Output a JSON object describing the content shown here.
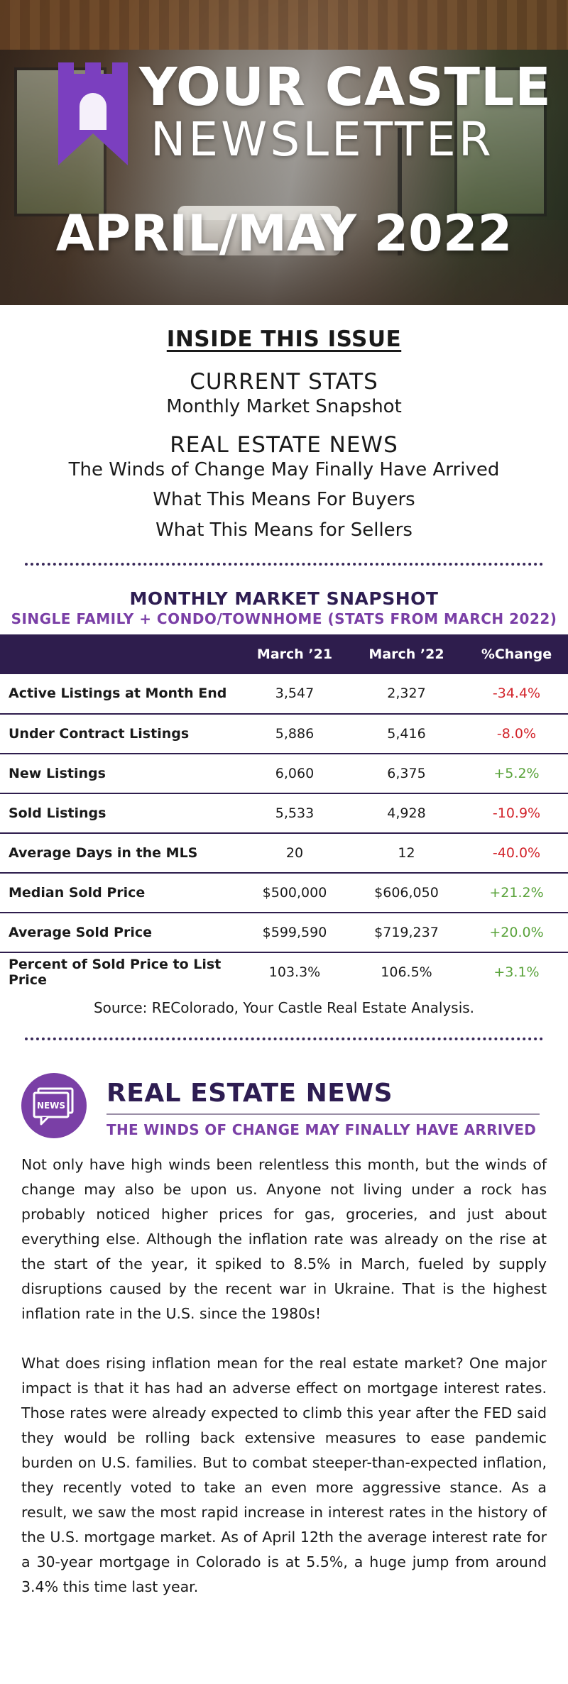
{
  "hero": {
    "title": "YOUR CASTLE",
    "subtitle": "NEWSLETTER",
    "date": "APRIL/MAY 2022",
    "brand_color": "#7b3fbf"
  },
  "toc": {
    "heading": "INSIDE THIS ISSUE",
    "groups": [
      {
        "title": "CURRENT STATS",
        "items": [
          "Monthly Market Snapshot"
        ]
      },
      {
        "title": "REAL ESTATE NEWS",
        "items": [
          "The Winds of Change May Finally Have Arrived",
          "What This Means For Buyers",
          "What This Means for Sellers"
        ]
      }
    ]
  },
  "snapshot": {
    "title": "MONTHLY MARKET SNAPSHOT",
    "subtitle": "SINGLE FAMILY + CONDO/TOWNHOME (STATS FROM MARCH 2022)",
    "columns": [
      "",
      "March ’21",
      "March ’22",
      "%Change"
    ],
    "rows": [
      {
        "label": "Active Listings at Month End",
        "m21": "3,547",
        "m22": "2,327",
        "change": "-34.4%",
        "dir": "neg"
      },
      {
        "label": "Under Contract Listings",
        "m21": "5,886",
        "m22": "5,416",
        "change": "-8.0%",
        "dir": "neg"
      },
      {
        "label": "New Listings",
        "m21": "6,060",
        "m22": "6,375",
        "change": "+5.2%",
        "dir": "pos"
      },
      {
        "label": "Sold Listings",
        "m21": "5,533",
        "m22": "4,928",
        "change": "-10.9%",
        "dir": "neg"
      },
      {
        "label": "Average Days in the MLS",
        "m21": "20",
        "m22": "12",
        "change": "-40.0%",
        "dir": "neg"
      },
      {
        "label": "Median Sold Price",
        "m21": "$500,000",
        "m22": "$606,050",
        "change": "+21.2%",
        "dir": "pos"
      },
      {
        "label": "Average Sold Price",
        "m21": "$599,590",
        "m22": "$719,237",
        "change": "+20.0%",
        "dir": "pos"
      },
      {
        "label": "Percent of Sold Price to List Price",
        "m21": "103.3%",
        "m22": "106.5%",
        "change": "+3.1%",
        "dir": "pos"
      }
    ],
    "source": "Source: REColorado, Your Castle Real Estate Analysis."
  },
  "news": {
    "badge_text": "NEWS",
    "title": "REAL ESTATE NEWS",
    "subtitle": "THE WINDS OF CHANGE MAY FINALLY HAVE ARRIVED",
    "paragraphs": [
      "Not only have high winds been relentless this month, but the winds of change may also be upon us. Anyone not living under a rock has probably noticed higher prices for gas, groceries, and just about everything else. Although the inflation rate was already on the rise at the start of the year, it spiked to 8.5% in March, fueled by supply disruptions caused by the recent war in Ukraine. That is the highest inflation rate in the U.S. since the 1980s!",
      "What does rising inflation mean for the real estate market? One major impact is that it has had an adverse effect on mortgage interest rates. Those rates were already expected to climb this year after the FED said they would be rolling back extensive measures to ease pandemic burden on U.S. families. But to combat steeper-than-expected inflation, they recently voted to take an even more aggressive stance. As a result, we saw the most rapid increase in interest rates in the history of the U.S. mortgage market. As of April 12th the average interest rate for a 30-year mortgage in Colorado is at 5.5%, a huge jump from around 3.4% this time last year."
    ]
  }
}
